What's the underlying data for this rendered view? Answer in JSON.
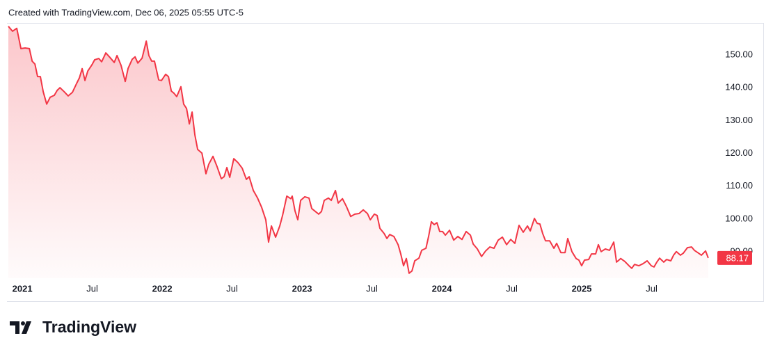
{
  "chart_data": {
    "type": "area",
    "header": "Created with TradingView.com, Dec 06, 2025 05:55 UTC-5",
    "brand": "TradingView",
    "color": "#f23645",
    "grid": false,
    "xlim": [
      2020.89,
      2025.965
    ],
    "ylim": [
      82,
      159.3
    ],
    "xticks": [
      {
        "value": 2021,
        "label": "2021"
      },
      {
        "value": 2021.5,
        "label": "Jul"
      },
      {
        "value": 2022,
        "label": "2022"
      },
      {
        "value": 2022.5,
        "label": "Jul"
      },
      {
        "value": 2023,
        "label": "2023"
      },
      {
        "value": 2023.5,
        "label": "Jul"
      },
      {
        "value": 2024,
        "label": "2024"
      },
      {
        "value": 2024.5,
        "label": "Jul"
      },
      {
        "value": 2025,
        "label": "2025"
      },
      {
        "value": 2025.5,
        "label": "Jul"
      }
    ],
    "yticks": [
      {
        "value": 90,
        "label": "90.00"
      },
      {
        "value": 100,
        "label": "100.00"
      },
      {
        "value": 110,
        "label": "110.00"
      },
      {
        "value": 120,
        "label": "120.00"
      },
      {
        "value": 130,
        "label": "130.00"
      },
      {
        "value": 140,
        "label": "140.00"
      },
      {
        "value": 150,
        "label": "150.00"
      }
    ],
    "x": [
      2020.9,
      2020.93,
      2020.96,
      2020.99,
      2021.02,
      2021.05,
      2021.07,
      2021.09,
      2021.109,
      2021.129,
      2021.149,
      2021.174,
      2021.199,
      2021.229,
      2021.249,
      2021.269,
      2021.299,
      2021.328,
      2021.358,
      2021.388,
      2021.408,
      2021.428,
      2021.448,
      2021.468,
      2021.498,
      2021.517,
      2021.547,
      2021.567,
      2021.597,
      2021.627,
      2021.657,
      2021.677,
      2021.706,
      2021.736,
      2021.756,
      2021.786,
      2021.806,
      2021.826,
      2021.856,
      2021.886,
      2021.905,
      2021.925,
      2021.945,
      2021.975,
      2021.995,
      2022.025,
      2022.045,
      2022.065,
      2022.085,
      2022.104,
      2022.134,
      2022.154,
      2022.174,
      2022.194,
      2022.214,
      2022.234,
      2022.254,
      2022.284,
      2022.313,
      2022.333,
      2022.363,
      2022.393,
      2022.423,
      2022.443,
      2022.463,
      2022.483,
      2022.512,
      2022.542,
      2022.572,
      2022.602,
      2022.622,
      2022.652,
      2022.682,
      2022.711,
      2022.741,
      2022.761,
      2022.781,
      2022.811,
      2022.841,
      2022.861,
      2022.891,
      2022.92,
      2022.93,
      2022.95,
      2022.97,
      2022.99,
      2023.02,
      2023.05,
      2023.07,
      2023.09,
      2023.119,
      2023.139,
      2023.159,
      2023.189,
      2023.209,
      2023.239,
      2023.259,
      2023.289,
      2023.318,
      2023.348,
      2023.378,
      2023.408,
      2023.438,
      2023.468,
      2023.488,
      2023.517,
      2023.537,
      2023.557,
      2023.587,
      2023.607,
      2023.627,
      2023.657,
      2023.687,
      2023.706,
      2023.726,
      2023.746,
      2023.766,
      2023.786,
      2023.806,
      2023.836,
      2023.856,
      2023.886,
      2023.905,
      2023.925,
      2023.945,
      2023.965,
      2023.985,
      2024.005,
      2024.025,
      2024.055,
      2024.085,
      2024.114,
      2024.144,
      2024.174,
      2024.204,
      2024.224,
      2024.254,
      2024.284,
      2024.313,
      2024.343,
      2024.373,
      2024.403,
      2024.433,
      2024.463,
      2024.493,
      2024.522,
      2024.552,
      2024.582,
      2024.612,
      2024.632,
      2024.662,
      2024.682,
      2024.701,
      2024.721,
      2024.741,
      2024.771,
      2024.801,
      2024.821,
      2024.851,
      2024.881,
      2024.9,
      2024.93,
      2024.96,
      2024.98,
      2025.0,
      2025.02,
      2025.05,
      2025.07,
      2025.1,
      2025.119,
      2025.139,
      2025.169,
      2025.199,
      2025.229,
      2025.249,
      2025.279,
      2025.308,
      2025.338,
      2025.358,
      2025.378,
      2025.408,
      2025.438,
      2025.468,
      2025.498,
      2025.517,
      2025.537,
      2025.557,
      2025.587,
      2025.607,
      2025.637,
      2025.657,
      2025.677,
      2025.706,
      2025.726,
      2025.756,
      2025.786,
      2025.806,
      2025.836,
      2025.856,
      2025.886,
      2025.905
    ],
    "values": [
      158.7,
      157.2,
      158.1,
      151.9,
      152.1,
      151.9,
      148.1,
      147.2,
      143.4,
      143.4,
      138.8,
      135.0,
      137.1,
      137.7,
      139.2,
      140.0,
      138.8,
      137.5,
      138.6,
      141.3,
      143.0,
      145.8,
      142.2,
      145.1,
      147.0,
      148.5,
      148.9,
      147.9,
      150.6,
      149.2,
      147.7,
      149.8,
      146.8,
      141.9,
      145.9,
      148.7,
      149.4,
      147.5,
      149.0,
      154.2,
      149.8,
      148.1,
      148.1,
      142.4,
      142.2,
      144.1,
      143.4,
      139.0,
      138.3,
      137.3,
      140.3,
      135.0,
      133.7,
      129.0,
      132.6,
      125.6,
      121.2,
      120.1,
      113.8,
      116.7,
      119.1,
      115.9,
      112.3,
      112.9,
      115.7,
      112.7,
      118.4,
      117.2,
      115.5,
      112.1,
      112.9,
      108.7,
      106.4,
      103.6,
      99.8,
      93.0,
      97.9,
      94.5,
      97.9,
      101.1,
      107.0,
      106.2,
      107.0,
      102.5,
      99.8,
      105.7,
      106.8,
      106.4,
      103.2,
      102.5,
      101.5,
      102.3,
      105.7,
      106.4,
      105.7,
      108.7,
      104.9,
      106.2,
      103.8,
      100.8,
      101.5,
      101.7,
      102.8,
      101.7,
      99.8,
      101.5,
      101.1,
      97.2,
      95.6,
      94.1,
      95.3,
      94.7,
      92.2,
      89.4,
      85.8,
      88.0,
      83.5,
      84.2,
      87.3,
      88.1,
      90.5,
      91.1,
      94.7,
      99.2,
      98.3,
      98.9,
      96.2,
      96.2,
      95.1,
      96.6,
      93.6,
      94.7,
      93.8,
      96.2,
      95.1,
      92.4,
      90.9,
      88.6,
      90.3,
      91.5,
      91.1,
      93.6,
      94.5,
      92.2,
      93.8,
      92.6,
      98.1,
      96.0,
      97.9,
      96.4,
      100.2,
      98.7,
      98.5,
      95.6,
      93.4,
      93.4,
      91.1,
      92.6,
      89.8,
      89.8,
      94.1,
      90.1,
      88.0,
      87.5,
      85.8,
      87.5,
      87.7,
      89.4,
      89.4,
      92.2,
      90.1,
      90.9,
      90.5,
      93.0,
      86.9,
      88.0,
      87.1,
      85.8,
      85.0,
      86.2,
      85.8,
      86.4,
      87.3,
      85.8,
      85.4,
      86.9,
      88.1,
      86.9,
      87.7,
      87.3,
      89.0,
      90.1,
      89.0,
      89.6,
      91.3,
      91.5,
      90.5,
      89.6,
      89.0,
      90.3,
      88.17
    ],
    "last_value_label": "88.17"
  }
}
